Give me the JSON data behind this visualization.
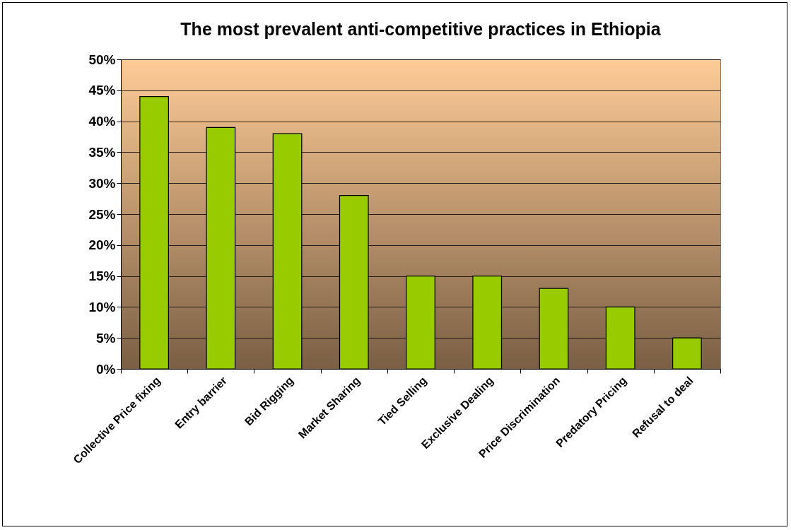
{
  "chart_data": {
    "type": "bar",
    "title": "The most prevalent anti-competitive practices in Ethiopia",
    "categories": [
      "Collective Price fixing",
      "Entry barrier",
      "Bid Rigging",
      "Market Sharing",
      "Tied Selling",
      "Exclusive Dealing",
      "Price Discrimination",
      "Predatory Pricing",
      "Refusal to deal"
    ],
    "values": [
      44,
      39,
      38,
      28,
      15,
      15,
      13,
      10,
      5
    ],
    "color": "#99cc00",
    "ylim": [
      0,
      50
    ],
    "yticks": [
      {
        "value": 0,
        "label": "0%"
      },
      {
        "value": 5,
        "label": "5%"
      },
      {
        "value": 10,
        "label": "10%"
      },
      {
        "value": 15,
        "label": "15%"
      },
      {
        "value": 20,
        "label": "20%"
      },
      {
        "value": 25,
        "label": "25%"
      },
      {
        "value": 30,
        "label": "30%"
      },
      {
        "value": 35,
        "label": "35%"
      },
      {
        "value": 40,
        "label": "40%"
      },
      {
        "value": 45,
        "label": "45%"
      },
      {
        "value": 50,
        "label": "50%"
      }
    ],
    "grid": true,
    "legend": false
  }
}
